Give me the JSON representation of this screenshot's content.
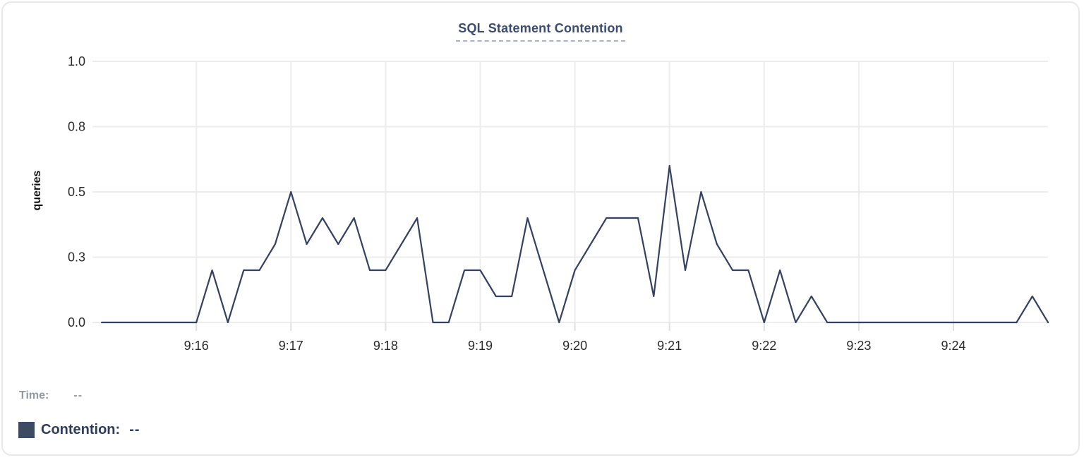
{
  "header": {
    "title": "SQL Statement Contention"
  },
  "legend": {
    "time_label": "Time:",
    "time_value": "--",
    "contention_label": "Contention:",
    "contention_value": "--"
  },
  "colors": {
    "line": "#334263",
    "swatch": "#3d4a63",
    "title": "#3a4c70",
    "title_underline": "#a7b2d2",
    "grid": "#ececec",
    "tick_text": "#2a2a2a",
    "time_label_text": "#9298a2",
    "contention_label_text": "#2d3d5e"
  },
  "chart_data": {
    "type": "line",
    "title": "SQL Statement Contention",
    "xlabel": "",
    "ylabel": "queries",
    "ylim": [
      0,
      1.0
    ],
    "grid": true,
    "legend_position": "bottom-left",
    "yticks": [
      {
        "v": 1.0,
        "label": "1.0"
      },
      {
        "v": 0.75,
        "label": "0.8"
      },
      {
        "v": 0.5,
        "label": "0.5"
      },
      {
        "v": 0.25,
        "label": "0.3"
      },
      {
        "v": 0.0,
        "label": "0.0"
      }
    ],
    "xticks": [
      "9:16",
      "9:17",
      "9:18",
      "9:19",
      "9:20",
      "9:21",
      "9:22",
      "9:23",
      "9:24"
    ],
    "x_range": [
      "9:15:00",
      "9:25:00"
    ],
    "series": [
      {
        "name": "Contention",
        "unit": "queries",
        "points": [
          [
            "9:15:00",
            0
          ],
          [
            "9:15:10",
            0
          ],
          [
            "9:15:20",
            0
          ],
          [
            "9:15:30",
            0
          ],
          [
            "9:15:40",
            0
          ],
          [
            "9:15:50",
            0
          ],
          [
            "9:16:00",
            0
          ],
          [
            "9:16:10",
            0.2
          ],
          [
            "9:16:20",
            0
          ],
          [
            "9:16:30",
            0.2
          ],
          [
            "9:16:40",
            0.2
          ],
          [
            "9:16:50",
            0.3
          ],
          [
            "9:17:00",
            0.5
          ],
          [
            "9:17:10",
            0.3
          ],
          [
            "9:17:20",
            0.4
          ],
          [
            "9:17:30",
            0.3
          ],
          [
            "9:17:40",
            0.4
          ],
          [
            "9:17:50",
            0.2
          ],
          [
            "9:18:00",
            0.2
          ],
          [
            "9:18:10",
            0.3
          ],
          [
            "9:18:20",
            0.4
          ],
          [
            "9:18:30",
            0
          ],
          [
            "9:18:40",
            0
          ],
          [
            "9:18:50",
            0.2
          ],
          [
            "9:19:00",
            0.2
          ],
          [
            "9:19:10",
            0.1
          ],
          [
            "9:19:20",
            0.1
          ],
          [
            "9:19:30",
            0.4
          ],
          [
            "9:19:40",
            0.2
          ],
          [
            "9:19:50",
            0
          ],
          [
            "9:20:00",
            0.2
          ],
          [
            "9:20:10",
            0.3
          ],
          [
            "9:20:20",
            0.4
          ],
          [
            "9:20:30",
            0.4
          ],
          [
            "9:20:40",
            0.4
          ],
          [
            "9:20:50",
            0.1
          ],
          [
            "9:21:00",
            0.6
          ],
          [
            "9:21:10",
            0.2
          ],
          [
            "9:21:20",
            0.5
          ],
          [
            "9:21:30",
            0.3
          ],
          [
            "9:21:40",
            0.2
          ],
          [
            "9:21:50",
            0.2
          ],
          [
            "9:22:00",
            0
          ],
          [
            "9:22:10",
            0.2
          ],
          [
            "9:22:20",
            0
          ],
          [
            "9:22:30",
            0.1
          ],
          [
            "9:22:40",
            0
          ],
          [
            "9:22:50",
            0
          ],
          [
            "9:23:00",
            0
          ],
          [
            "9:23:10",
            0
          ],
          [
            "9:23:20",
            0
          ],
          [
            "9:23:30",
            0
          ],
          [
            "9:23:40",
            0
          ],
          [
            "9:23:50",
            0
          ],
          [
            "9:24:00",
            0
          ],
          [
            "9:24:10",
            0
          ],
          [
            "9:24:20",
            0
          ],
          [
            "9:24:30",
            0
          ],
          [
            "9:24:40",
            0
          ],
          [
            "9:24:50",
            0.1
          ],
          [
            "9:25:00",
            0
          ]
        ]
      }
    ]
  }
}
